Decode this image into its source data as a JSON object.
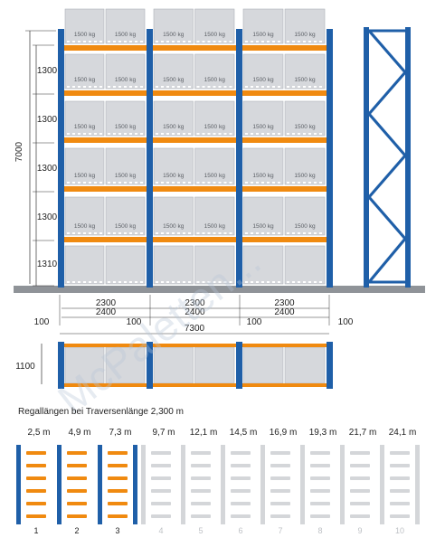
{
  "colors": {
    "upright_blue": "#1f5fa8",
    "beam_orange": "#f08a10",
    "box_gray": "#d6d8dc",
    "box_edge": "#aeb2b8",
    "floor_gray": "#8f9398",
    "faded": "#d4d6d9",
    "watermark": "#b8c6d8"
  },
  "front_view": {
    "total_height": "7000",
    "level_heights": [
      "1300",
      "1300",
      "1300",
      "1300",
      "1310"
    ],
    "load_label": "1500 kg",
    "beam_lengths": [
      "2300",
      "2300",
      "2300"
    ],
    "bay_lengths": [
      "2400",
      "2400",
      "2400"
    ],
    "end_clearance_left": "100",
    "end_clearance_right": "100",
    "mid_clearance_1": "100",
    "mid_clearance_2": "100",
    "total_length": "7300"
  },
  "top_view": {
    "depth": "1100"
  },
  "watermark": "McPaletten...",
  "legend": {
    "title": "Regallängen bei Traversenlänge 2,300 m",
    "lengths": [
      "2,5 m",
      "4,9 m",
      "7,3 m",
      "9,7 m",
      "12,1 m",
      "14,5 m",
      "16,9 m",
      "19,3 m",
      "21,7 m",
      "24,1 m"
    ],
    "numbers": [
      "1",
      "2",
      "3",
      "4",
      "5",
      "6",
      "7",
      "8",
      "9",
      "10"
    ],
    "active_count": 3
  }
}
